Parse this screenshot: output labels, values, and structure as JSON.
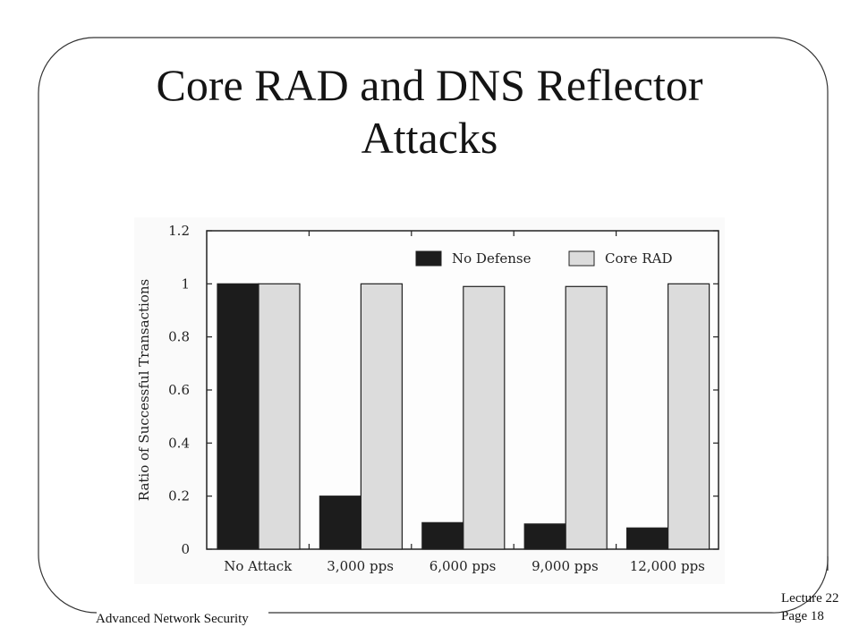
{
  "slide": {
    "title_line1": "Core RAD and DNS Reflector",
    "title_line2": "Attacks",
    "footer_left": "Advanced Network Security",
    "footer_lecture": "Lecture 22",
    "footer_page": "Page 18"
  },
  "chart_data": {
    "type": "bar",
    "title": "",
    "xlabel": "",
    "ylabel": "Ratio of Successful Transactions",
    "categories": [
      "No Attack",
      "3,000 pps",
      "6,000 pps",
      "9,000 pps",
      "12,000 pps"
    ],
    "series": [
      {
        "name": "No Defense",
        "color": "#1c1c1c",
        "values": [
          1.0,
          0.2,
          0.1,
          0.095,
          0.08
        ]
      },
      {
        "name": "Core RAD",
        "color": "#dcdcdc",
        "values": [
          1.0,
          1.0,
          0.99,
          0.99,
          1.0
        ]
      }
    ],
    "ylim": [
      0,
      1.2
    ],
    "yticks": [
      "0",
      "0.2",
      "0.4",
      "0.6",
      "0.8",
      "1",
      "1.2"
    ],
    "grid": false,
    "legend_position": "top-right"
  }
}
